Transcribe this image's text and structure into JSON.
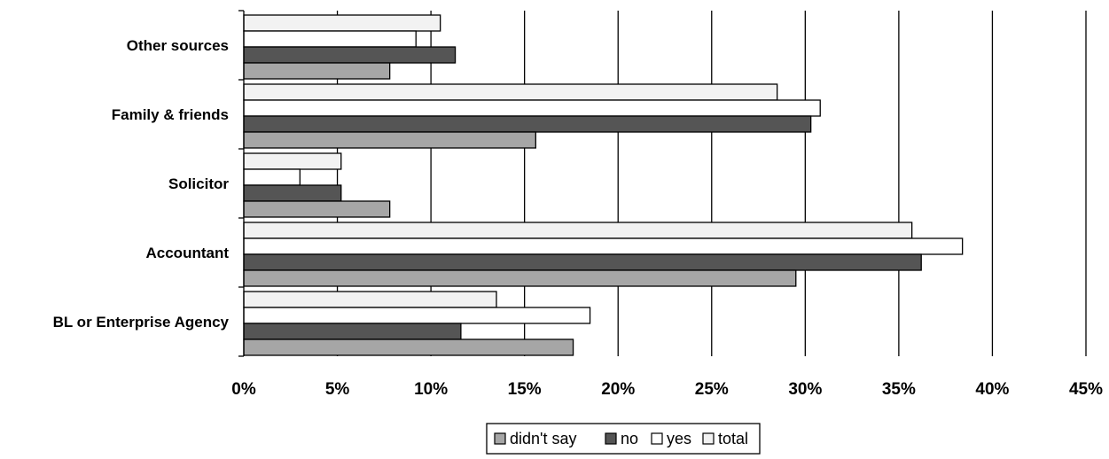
{
  "chart_data": {
    "type": "bar",
    "orientation": "horizontal",
    "categories": [
      "Other sources",
      "Family & friends",
      "Solicitor",
      "Accountant",
      "BL or Enterprise Agency"
    ],
    "series": [
      {
        "name": "total",
        "color": "#f2f2f2",
        "values": [
          10.5,
          28.5,
          5.2,
          35.7,
          13.5
        ]
      },
      {
        "name": "yes",
        "color": "#ffffff",
        "values": [
          9.2,
          30.8,
          3.0,
          38.4,
          18.5
        ]
      },
      {
        "name": "no",
        "color": "#555555",
        "values": [
          11.3,
          30.3,
          5.2,
          36.2,
          11.6
        ]
      },
      {
        "name": "didn't say",
        "color": "#a6a6a6",
        "values": [
          7.8,
          15.6,
          7.8,
          29.5,
          17.6
        ]
      }
    ],
    "xticks": [
      "0%",
      "5%",
      "10%",
      "15%",
      "20%",
      "25%",
      "30%",
      "35%",
      "40%",
      "45%"
    ],
    "xlim": [
      0,
      45
    ],
    "grid": true,
    "legend": {
      "placement": "bottom",
      "entries": [
        "didn't say",
        "no",
        "yes",
        "total"
      ]
    }
  }
}
